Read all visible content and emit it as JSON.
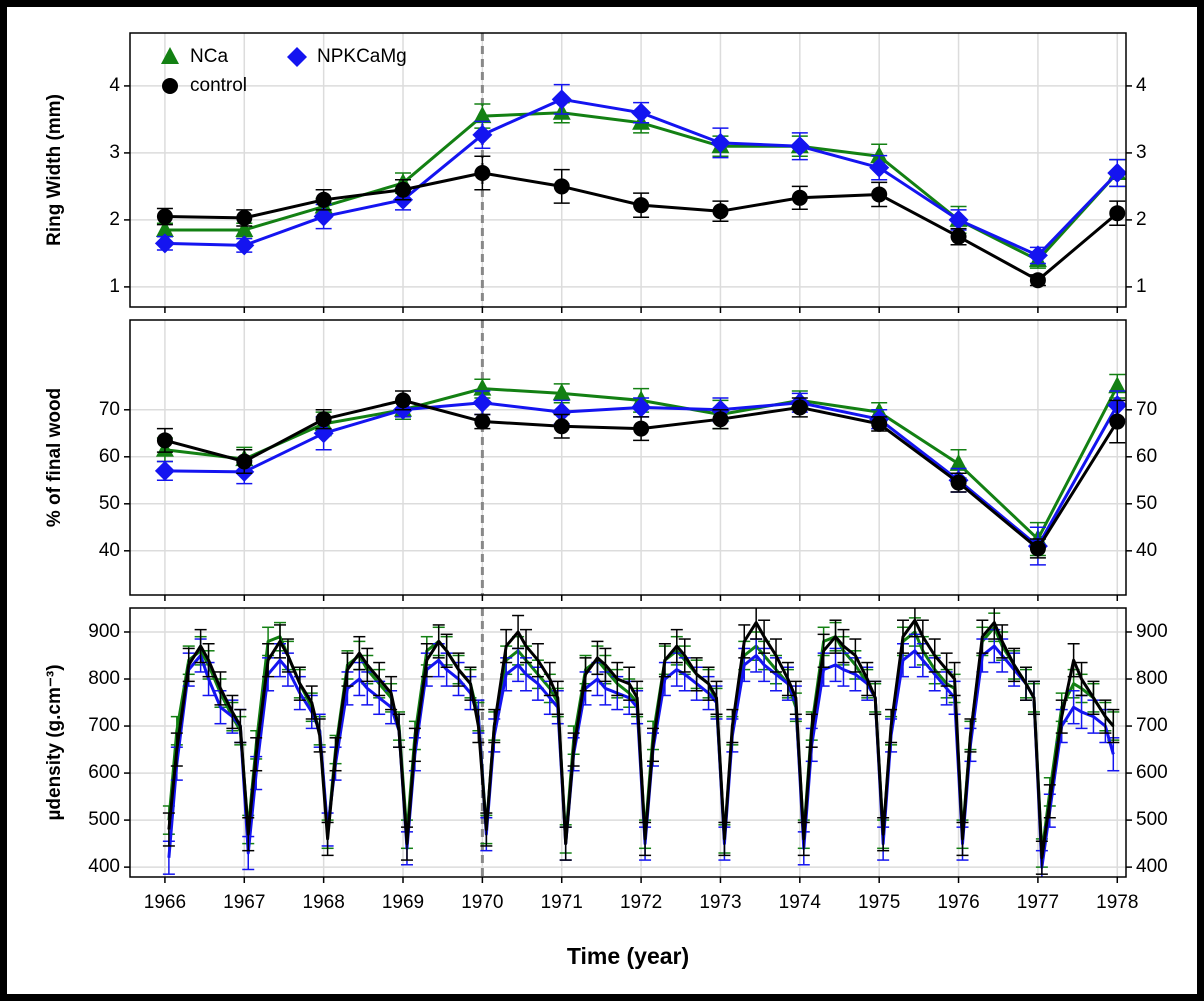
{
  "chart_data": [
    {
      "type": "line",
      "ylabel": "Ring Width (mm)",
      "legend": "upper left",
      "x": [
        1966,
        1967,
        1968,
        1969,
        1970,
        1971,
        1972,
        1973,
        1974,
        1975,
        1976,
        1977,
        1978
      ],
      "xlim": [
        1965.56,
        1978.11
      ],
      "xticks": [
        1966,
        1967,
        1968,
        1969,
        1970,
        1971,
        1972,
        1973,
        1974,
        1975,
        1976,
        1977,
        1978
      ],
      "ylim": [
        0.7,
        4.79
      ],
      "yticks": [
        1,
        2,
        3,
        4
      ],
      "grid": true,
      "vline": 1970,
      "series": [
        {
          "name": "NCa",
          "color": "#138013",
          "marker": "triangle",
          "values": [
            1.85,
            1.85,
            2.2,
            2.55,
            3.55,
            3.6,
            3.45,
            3.1,
            3.1,
            2.95,
            2.0,
            1.4,
            2.7
          ],
          "errors": [
            0.1,
            0.1,
            0.12,
            0.15,
            0.18,
            0.15,
            0.15,
            0.15,
            0.15,
            0.18,
            0.2,
            0.12,
            0.2
          ]
        },
        {
          "name": "NPKCaMg",
          "color": "#1414f0",
          "marker": "diamond",
          "values": [
            1.65,
            1.62,
            2.05,
            2.3,
            3.27,
            3.8,
            3.6,
            3.15,
            3.1,
            2.78,
            2.0,
            1.47,
            2.7
          ],
          "errors": [
            0.1,
            0.1,
            0.18,
            0.15,
            0.2,
            0.22,
            0.15,
            0.22,
            0.2,
            0.18,
            0.15,
            0.12,
            0.2
          ]
        },
        {
          "name": "control",
          "color": "#000000",
          "marker": "circle",
          "values": [
            2.05,
            2.03,
            2.3,
            2.45,
            2.7,
            2.5,
            2.22,
            2.13,
            2.33,
            2.38,
            1.75,
            1.1,
            2.1
          ],
          "errors": [
            0.12,
            0.12,
            0.15,
            0.15,
            0.25,
            0.25,
            0.18,
            0.15,
            0.17,
            0.18,
            0.12,
            0.08,
            0.18
          ]
        }
      ]
    },
    {
      "type": "line",
      "ylabel": "% of final wood",
      "x": [
        1966,
        1967,
        1968,
        1969,
        1970,
        1971,
        1972,
        1973,
        1974,
        1975,
        1976,
        1977,
        1978
      ],
      "xlim": [
        1965.56,
        1978.11
      ],
      "xticks": [
        1966,
        1967,
        1968,
        1969,
        1970,
        1971,
        1972,
        1973,
        1974,
        1975,
        1976,
        1977,
        1978
      ],
      "ylim": [
        30.6,
        89.1
      ],
      "yticks": [
        40,
        50,
        60,
        70
      ],
      "grid": true,
      "vline": 1970,
      "series": [
        {
          "color": "#138013",
          "marker": "triangle",
          "values": [
            61.5,
            59.5,
            67,
            70,
            74.5,
            73.5,
            72,
            69,
            72,
            69.5,
            58.5,
            42.5,
            75
          ],
          "errors": [
            2.5,
            2.5,
            2.5,
            2,
            2,
            2,
            2.5,
            3,
            2,
            2,
            3,
            3.5,
            2.5
          ]
        },
        {
          "color": "#1414f0",
          "marker": "diamond",
          "values": [
            57,
            56.8,
            65,
            70,
            71.5,
            69.5,
            70.5,
            70,
            71.5,
            68,
            55,
            41,
            71
          ],
          "errors": [
            2,
            2.5,
            3.5,
            1.5,
            2.5,
            2.5,
            2,
            2.5,
            2,
            2,
            2.5,
            4,
            3
          ]
        },
        {
          "color": "#000000",
          "marker": "circle",
          "values": [
            63.5,
            59,
            68,
            72,
            67.5,
            66.5,
            66,
            68,
            70.5,
            67,
            54.5,
            40.5,
            67.5
          ],
          "errors": [
            2.5,
            2.5,
            2,
            2,
            1.5,
            2.5,
            2.5,
            2,
            2,
            1.5,
            2,
            2,
            4.5
          ]
        }
      ]
    },
    {
      "type": "line",
      "ylabel": "µdensity (g.cm⁻³)",
      "xlabel": "Time (year)",
      "x": [
        1966.05,
        1966.15,
        1966.3,
        1966.45,
        1966.55,
        1966.7,
        1966.85,
        1966.95,
        1967.05,
        1967.15,
        1967.3,
        1967.45,
        1967.55,
        1967.7,
        1967.85,
        1967.95,
        1968.05,
        1968.15,
        1968.3,
        1968.45,
        1968.55,
        1968.7,
        1968.85,
        1968.95,
        1969.05,
        1969.15,
        1969.3,
        1969.45,
        1969.55,
        1969.7,
        1969.85,
        1969.95,
        1970.05,
        1970.15,
        1970.3,
        1970.45,
        1970.55,
        1970.7,
        1970.85,
        1970.95,
        1971.05,
        1971.15,
        1971.3,
        1971.45,
        1971.55,
        1971.7,
        1971.85,
        1971.95,
        1972.05,
        1972.15,
        1972.3,
        1972.45,
        1972.55,
        1972.7,
        1972.85,
        1972.95,
        1973.05,
        1973.15,
        1973.3,
        1973.45,
        1973.55,
        1973.7,
        1973.85,
        1973.95,
        1974.05,
        1974.15,
        1974.3,
        1974.45,
        1974.55,
        1974.7,
        1974.85,
        1974.95,
        1975.05,
        1975.15,
        1975.3,
        1975.45,
        1975.55,
        1975.7,
        1975.85,
        1975.95,
        1976.05,
        1976.15,
        1976.3,
        1976.45,
        1976.55,
        1976.7,
        1976.85,
        1976.95,
        1977.05,
        1977.15,
        1977.3,
        1977.45,
        1977.55,
        1977.7,
        1977.85,
        1977.95
      ],
      "xlim": [
        1965.56,
        1978.11
      ],
      "xticks": [
        1966,
        1967,
        1968,
        1969,
        1970,
        1971,
        1972,
        1973,
        1974,
        1975,
        1976,
        1977,
        1978
      ],
      "ylim": [
        379,
        951
      ],
      "yticks": [
        400,
        500,
        600,
        700,
        800,
        900
      ],
      "grid": true,
      "vline": 1970,
      "series": [
        {
          "color": "#138013",
          "marker": "none",
          "error": 30,
          "values": [
            500,
            690,
            840,
            860,
            830,
            770,
            720,
            690,
            480,
            660,
            880,
            890,
            850,
            790,
            740,
            690,
            470,
            650,
            830,
            850,
            820,
            790,
            760,
            700,
            470,
            680,
            860,
            880,
            860,
            820,
            790,
            720,
            480,
            700,
            840,
            860,
            840,
            810,
            780,
            750,
            460,
            670,
            820,
            840,
            820,
            790,
            770,
            750,
            470,
            680,
            840,
            860,
            840,
            810,
            790,
            750,
            460,
            690,
            850,
            870,
            850,
            820,
            790,
            740,
            470,
            700,
            880,
            890,
            860,
            830,
            790,
            760,
            470,
            690,
            880,
            900,
            860,
            820,
            790,
            780,
            470,
            680,
            880,
            910,
            870,
            830,
            790,
            760,
            430,
            560,
            740,
            790,
            780,
            760,
            720,
            700
          ]
        },
        {
          "color": "#1414f0",
          "marker": "none",
          "error": 35,
          "values": [
            420,
            620,
            820,
            850,
            800,
            740,
            720,
            700,
            430,
            600,
            810,
            840,
            820,
            770,
            730,
            690,
            480,
            620,
            780,
            800,
            780,
            760,
            740,
            690,
            440,
            640,
            820,
            840,
            820,
            800,
            770,
            720,
            470,
            680,
            810,
            830,
            810,
            790,
            760,
            740,
            450,
            640,
            780,
            800,
            780,
            770,
            760,
            740,
            450,
            650,
            800,
            820,
            810,
            790,
            770,
            750,
            450,
            680,
            830,
            850,
            830,
            810,
            790,
            750,
            440,
            660,
            820,
            830,
            820,
            810,
            790,
            760,
            450,
            680,
            840,
            860,
            840,
            810,
            780,
            760,
            450,
            660,
            850,
            870,
            850,
            820,
            790,
            760,
            400,
            520,
            700,
            740,
            730,
            720,
            700,
            640
          ]
        },
        {
          "color": "#000000",
          "marker": "none",
          "error": 35,
          "values": [
            480,
            650,
            830,
            870,
            840,
            780,
            730,
            700,
            470,
            640,
            840,
            880,
            850,
            790,
            750,
            680,
            460,
            640,
            820,
            855,
            830,
            800,
            770,
            690,
            450,
            660,
            840,
            880,
            860,
            820,
            790,
            700,
            480,
            700,
            870,
            900,
            870,
            840,
            800,
            760,
            450,
            650,
            810,
            845,
            830,
            800,
            790,
            760,
            460,
            660,
            840,
            870,
            850,
            810,
            790,
            760,
            460,
            700,
            880,
            920,
            890,
            850,
            800,
            760,
            460,
            690,
            860,
            890,
            870,
            850,
            800,
            760,
            470,
            700,
            890,
            925,
            890,
            850,
            820,
            800,
            460,
            680,
            890,
            920,
            880,
            830,
            790,
            760,
            420,
            540,
            720,
            840,
            800,
            760,
            720,
            700
          ]
        }
      ]
    }
  ]
}
